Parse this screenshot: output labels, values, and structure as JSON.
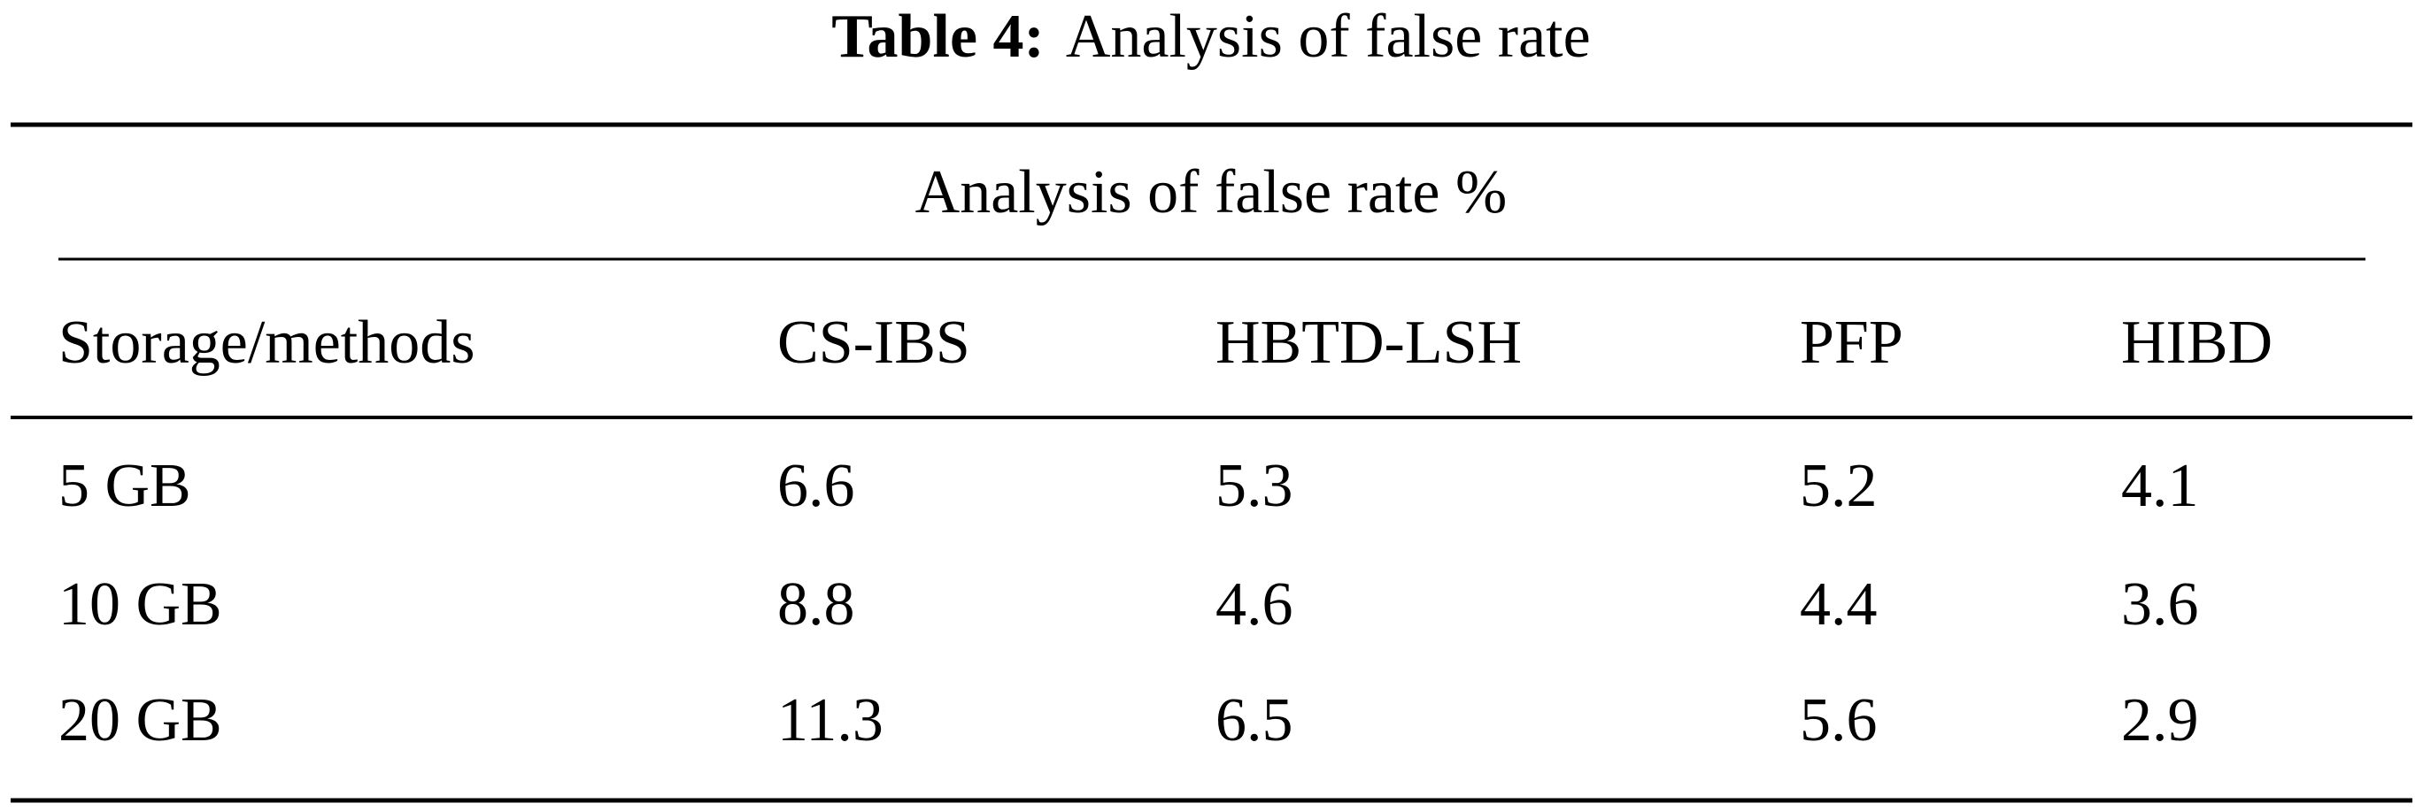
{
  "caption": {
    "label": "Table 4:",
    "text": "Analysis of false rate"
  },
  "table": {
    "group_header": "Analysis of false rate %",
    "columns": [
      "Storage/methods",
      "CS-IBS",
      "HBTD-LSH",
      "PFP",
      "HIBD"
    ],
    "rows": [
      [
        "5 GB",
        "6.6",
        "5.3",
        "5.2",
        "4.1"
      ],
      [
        "10 GB",
        "8.8",
        "4.6",
        "4.4",
        "3.6"
      ],
      [
        "20 GB",
        "11.3",
        "6.5",
        "5.6",
        "2.9"
      ]
    ]
  }
}
